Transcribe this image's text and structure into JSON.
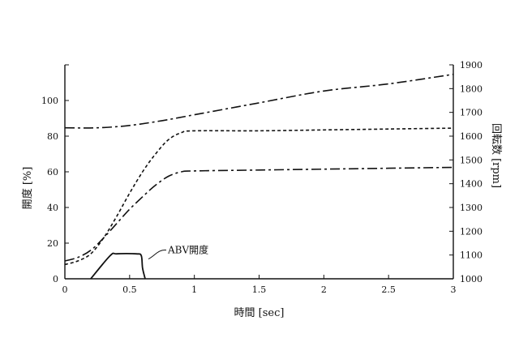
{
  "chart_data": {
    "type": "line",
    "xlabel": "時間 [sec]",
    "ylabel_left": "開度 [%]",
    "ylabel_right": "回転数 [rpm]",
    "xlim": [
      0,
      3
    ],
    "ylim_left": [
      0,
      120
    ],
    "ylim_right": [
      1000,
      1900
    ],
    "x_ticks": [
      0,
      0.5,
      1,
      1.5,
      2,
      2.5,
      3
    ],
    "x_tick_labels": [
      "0",
      "0.5",
      "1",
      "1.5",
      "2",
      "2.5",
      "3"
    ],
    "y_left_ticks": [
      0,
      20,
      40,
      60,
      80,
      100
    ],
    "y_left_tick_labels": [
      "0",
      "20",
      "40",
      "60",
      "80",
      "100"
    ],
    "y_right_ticks": [
      1000,
      1100,
      1200,
      1300,
      1400,
      1500,
      1600,
      1700,
      1800,
      1900
    ],
    "y_right_tick_labels": [
      "1000",
      "1100",
      "1200",
      "1300",
      "1400",
      "1500",
      "1600",
      "1700",
      "1800",
      "1900"
    ],
    "grid": false,
    "annotation": {
      "text": "ABV開度",
      "points_to_series": 0,
      "at_x": 0.62,
      "at_y": 12
    },
    "series": [
      {
        "name": "ABV開度",
        "axis": "left",
        "style": "solid",
        "x": [
          0.2,
          0.35,
          0.4,
          0.55,
          0.59,
          0.6,
          0.62
        ],
        "y": [
          0,
          13,
          14,
          14,
          13,
          6,
          0
        ]
      },
      {
        "axis": "left",
        "style": "dashed",
        "x": [
          0,
          0.1,
          0.2,
          0.3,
          0.4,
          0.5,
          0.6,
          0.7,
          0.8,
          0.9,
          1.0,
          1.5,
          2.0,
          2.5,
          3.0
        ],
        "y": [
          8,
          10,
          14,
          23,
          35,
          48,
          60,
          70,
          78,
          82,
          83,
          83,
          83.5,
          84,
          84.5
        ]
      },
      {
        "axis": "left",
        "style": "long-dash-dot",
        "x": [
          0,
          0.1,
          0.2,
          0.3,
          0.4,
          0.5,
          0.6,
          0.7,
          0.8,
          0.9,
          1.0,
          1.5,
          2.0,
          2.5,
          3.0
        ],
        "y": [
          10,
          12,
          16,
          23,
          31,
          39,
          46,
          52.5,
          57.5,
          60,
          60.5,
          61,
          61.5,
          62,
          62.5
        ]
      },
      {
        "axis": "right",
        "style": "long-dash-dot",
        "x": [
          0,
          0.25,
          0.5,
          0.75,
          1.0,
          1.5,
          2.0,
          2.5,
          3.0
        ],
        "y": [
          1635,
          1635,
          1645,
          1665,
          1690,
          1740,
          1790,
          1820,
          1860
        ]
      }
    ]
  }
}
